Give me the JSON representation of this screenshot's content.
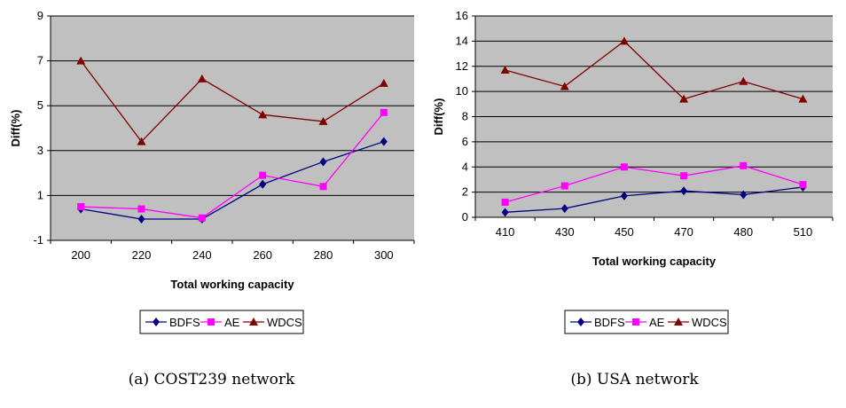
{
  "chart_data": [
    {
      "type": "line",
      "xlabel": "Total working capacity",
      "ylabel": "Diff(%)",
      "categories": [
        "200",
        "220",
        "240",
        "260",
        "280",
        "300"
      ],
      "ylim": [
        -1,
        9
      ],
      "yticks": [
        -1,
        1,
        3,
        5,
        7,
        9
      ],
      "grid": true,
      "legend_position": "bottom",
      "series": [
        {
          "name": "BDFS",
          "color": "#000080",
          "marker": "diamond",
          "values": [
            0.4,
            -0.05,
            -0.05,
            1.5,
            2.5,
            3.4
          ]
        },
        {
          "name": "AE",
          "color": "#ff00ff",
          "marker": "square",
          "values": [
            0.5,
            0.4,
            0.0,
            1.9,
            1.4,
            4.7
          ]
        },
        {
          "name": "WDCS",
          "color": "#800000",
          "marker": "triangle",
          "values": [
            7.0,
            3.4,
            6.2,
            4.6,
            4.3,
            6.0
          ]
        }
      ],
      "caption": "(a) COST239 network"
    },
    {
      "type": "line",
      "xlabel": "Total working capacity",
      "ylabel": "Diff(%)",
      "categories": [
        "410",
        "430",
        "450",
        "470",
        "480",
        "510"
      ],
      "ylim": [
        0,
        16
      ],
      "yticks": [
        0,
        2,
        4,
        6,
        8,
        10,
        12,
        14,
        16
      ],
      "grid": true,
      "legend_position": "bottom",
      "series": [
        {
          "name": "BDFS",
          "color": "#000080",
          "marker": "diamond",
          "values": [
            0.4,
            0.7,
            1.7,
            2.1,
            1.8,
            2.4
          ]
        },
        {
          "name": "AE",
          "color": "#ff00ff",
          "marker": "square",
          "values": [
            1.2,
            2.5,
            4.0,
            3.3,
            4.1,
            2.6
          ]
        },
        {
          "name": "WDCS",
          "color": "#800000",
          "marker": "triangle",
          "values": [
            11.7,
            10.4,
            14.0,
            9.4,
            10.8,
            9.4
          ]
        }
      ],
      "caption": "(b) USA network"
    }
  ]
}
